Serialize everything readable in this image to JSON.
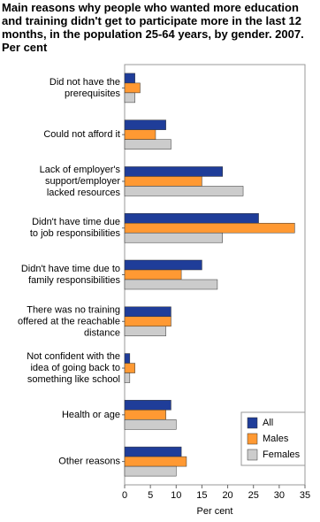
{
  "chart_data": {
    "type": "hbar",
    "title": "Main reasons why people who wanted more education and training didn't get to participate more in the last 12 months, in the population 25-64 years, by gender. 2007. Per cent",
    "xlabel": "Per cent",
    "categories": [
      "Did not have the\nprerequisites",
      "Could not afford it",
      "Lack of employer's\nsupport/employer\nlacked resources",
      "Didn't have time due\nto job responsibilities",
      "Didn't have time due to\nfamily responsibilities",
      "There was no training\noffered at the reachable\ndistance",
      "Not confident with the\nidea of going back to\nsomething like school",
      "Health or age",
      "Other reasons"
    ],
    "series": [
      {
        "name": "All",
        "color": "#1f3d99",
        "values": [
          2,
          8,
          19,
          26,
          15,
          9,
          1,
          9,
          11
        ]
      },
      {
        "name": "Males",
        "color": "#ff9933",
        "values": [
          3,
          6,
          15,
          33,
          11,
          9,
          2,
          8,
          12
        ]
      },
      {
        "name": "Females",
        "color": "#cccccc",
        "values": [
          2,
          9,
          23,
          19,
          18,
          8,
          1,
          10,
          10
        ]
      }
    ],
    "xlim": [
      0,
      35
    ],
    "xticks": [
      0,
      5,
      10,
      15,
      20,
      25,
      30,
      35
    ],
    "legend": "lower right"
  }
}
